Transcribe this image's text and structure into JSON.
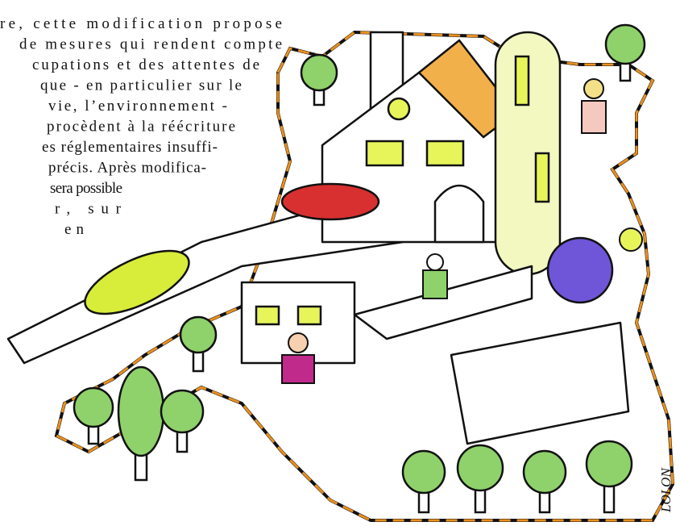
{
  "text_lines": [
    "re, cette modification propose",
    "de mesures qui rendent compte",
    "cupations et des attentes de",
    "que - en particulier sur le",
    "vie, l’environnement -",
    "procèdent à la réécriture",
    "es réglementaires insuffi-",
    "précis. Après modifica-",
    "sera possible",
    "r, sur",
    "en"
  ],
  "signature": "LOLON"
}
